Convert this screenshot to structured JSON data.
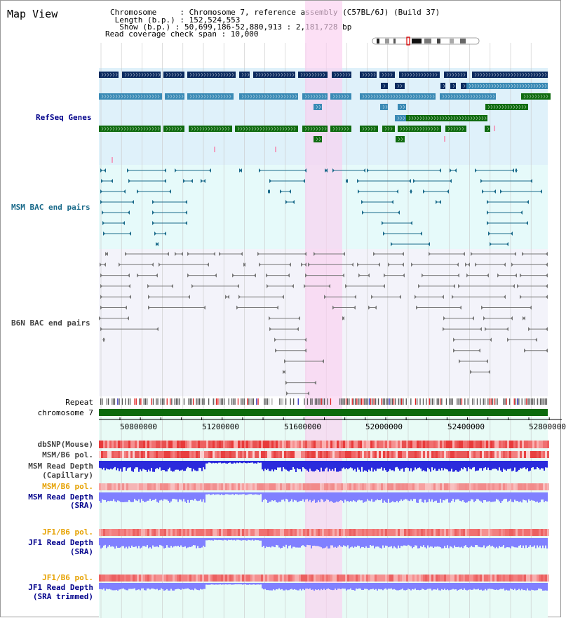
{
  "header": {
    "title": "Map View",
    "info_lines": [
      "Chromosome     : Chromosome 7, reference assembly (C57BL/6J) (Build 37)",
      " Length (b.p.) : 152,524,553",
      "  Show (b.p.) : 50,699,186-52,880,913 : 2,181,728 bp",
      "Read coverage check span : 10,000"
    ]
  },
  "tracks": {
    "refseq": "RefSeq Genes",
    "msm_bac": "MSM BAC end pairs",
    "b6n_bac": "B6N BAC end pairs",
    "repeat": "Repeat",
    "chromosome": "chromosome 7",
    "dbsnp": "dbSNP(Mouse)",
    "msm_pol_1": "MSM/B6 pol.",
    "msm_depth_cap_1": "MSM Read Depth",
    "msm_depth_cap_2": "(Capillary)",
    "msm_pol_2": "MSM/B6 pol.",
    "msm_depth_sra_1": "MSM Read Depth",
    "msm_depth_sra_2": "(SRA)",
    "jf1_pol_1": "JF1/B6 pol.",
    "jf1_depth_sra_1": "JF1 Read Depth",
    "jf1_depth_sra_2": "(SRA)",
    "jf1_pol_2": "JF1/B6 pol.",
    "jf1_depth_trim_1": "JF1 Read Depth",
    "jf1_depth_trim_2": "(SRA trimmed)"
  },
  "axis": {
    "ticks": [
      "50800000",
      "51200000",
      "51600000",
      "52000000",
      "52400000",
      "52800000"
    ]
  },
  "colors": {
    "refseq_bg": "#dff1fa",
    "msm_bg": "#e6fafa",
    "b6n_bg": "#f0f0f8",
    "highlight": "#fbd0f0",
    "refseq_navy": "#0a2a5e",
    "refseq_steel": "#3a8ab5",
    "refseq_green": "#0f6b0f",
    "msm_line": "#1a6a8a",
    "b6n_line": "#777777",
    "chrom_bar": "#0c6a0c",
    "depth_blue": "#2b2bdc",
    "depth_light": "#8080ff",
    "pol_red": "#e84040"
  }
}
